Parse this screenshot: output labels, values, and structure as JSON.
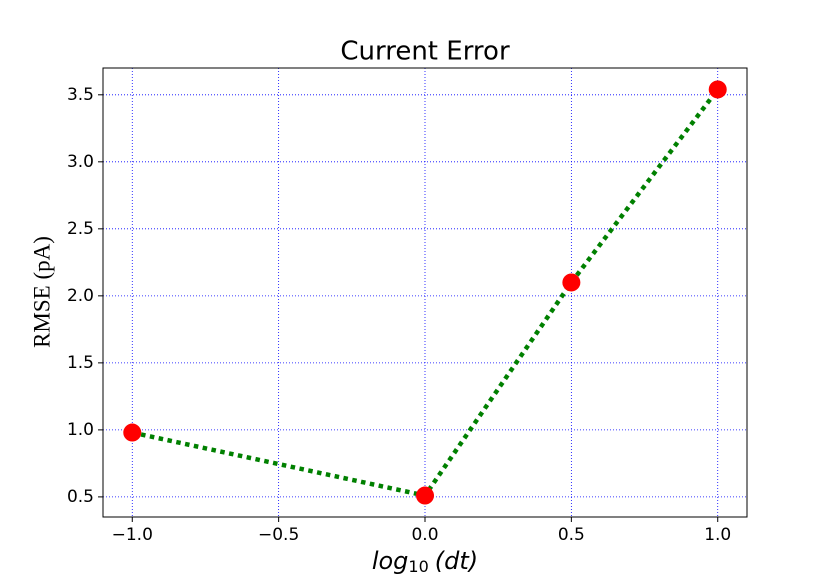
{
  "chart_data": {
    "type": "line",
    "title": "Current Error",
    "xlabel": {
      "base": "log",
      "subscript": "10",
      "argument": "(dt)"
    },
    "ylabel": "RMSE (pA)",
    "x": [
      -1.0,
      0.0,
      0.5,
      1.0
    ],
    "series": [
      {
        "color": "green",
        "marker_color": "red",
        "line_style": "dotted",
        "values": [
          0.98,
          0.51,
          2.1,
          3.54
        ]
      }
    ],
    "xlim": [
      -1.1,
      1.1
    ],
    "xticks": [
      {
        "value": -1.0,
        "label": "−1.0"
      },
      {
        "value": -0.5,
        "label": "−0.5"
      },
      {
        "value": 0.0,
        "label": "0.0"
      },
      0.5,
      {
        "value": 1.0,
        "label": "1.0"
      }
    ],
    "ylim": [
      0.35,
      3.7
    ],
    "yticks": [
      0.5,
      {
        "value": 1.0,
        "label": "1.0"
      },
      1.5,
      {
        "value": 2.0,
        "label": "2.0"
      },
      2.5,
      {
        "value": 3.0,
        "label": "3.0"
      },
      3.5
    ],
    "grid": true,
    "grid_color": "blue"
  }
}
